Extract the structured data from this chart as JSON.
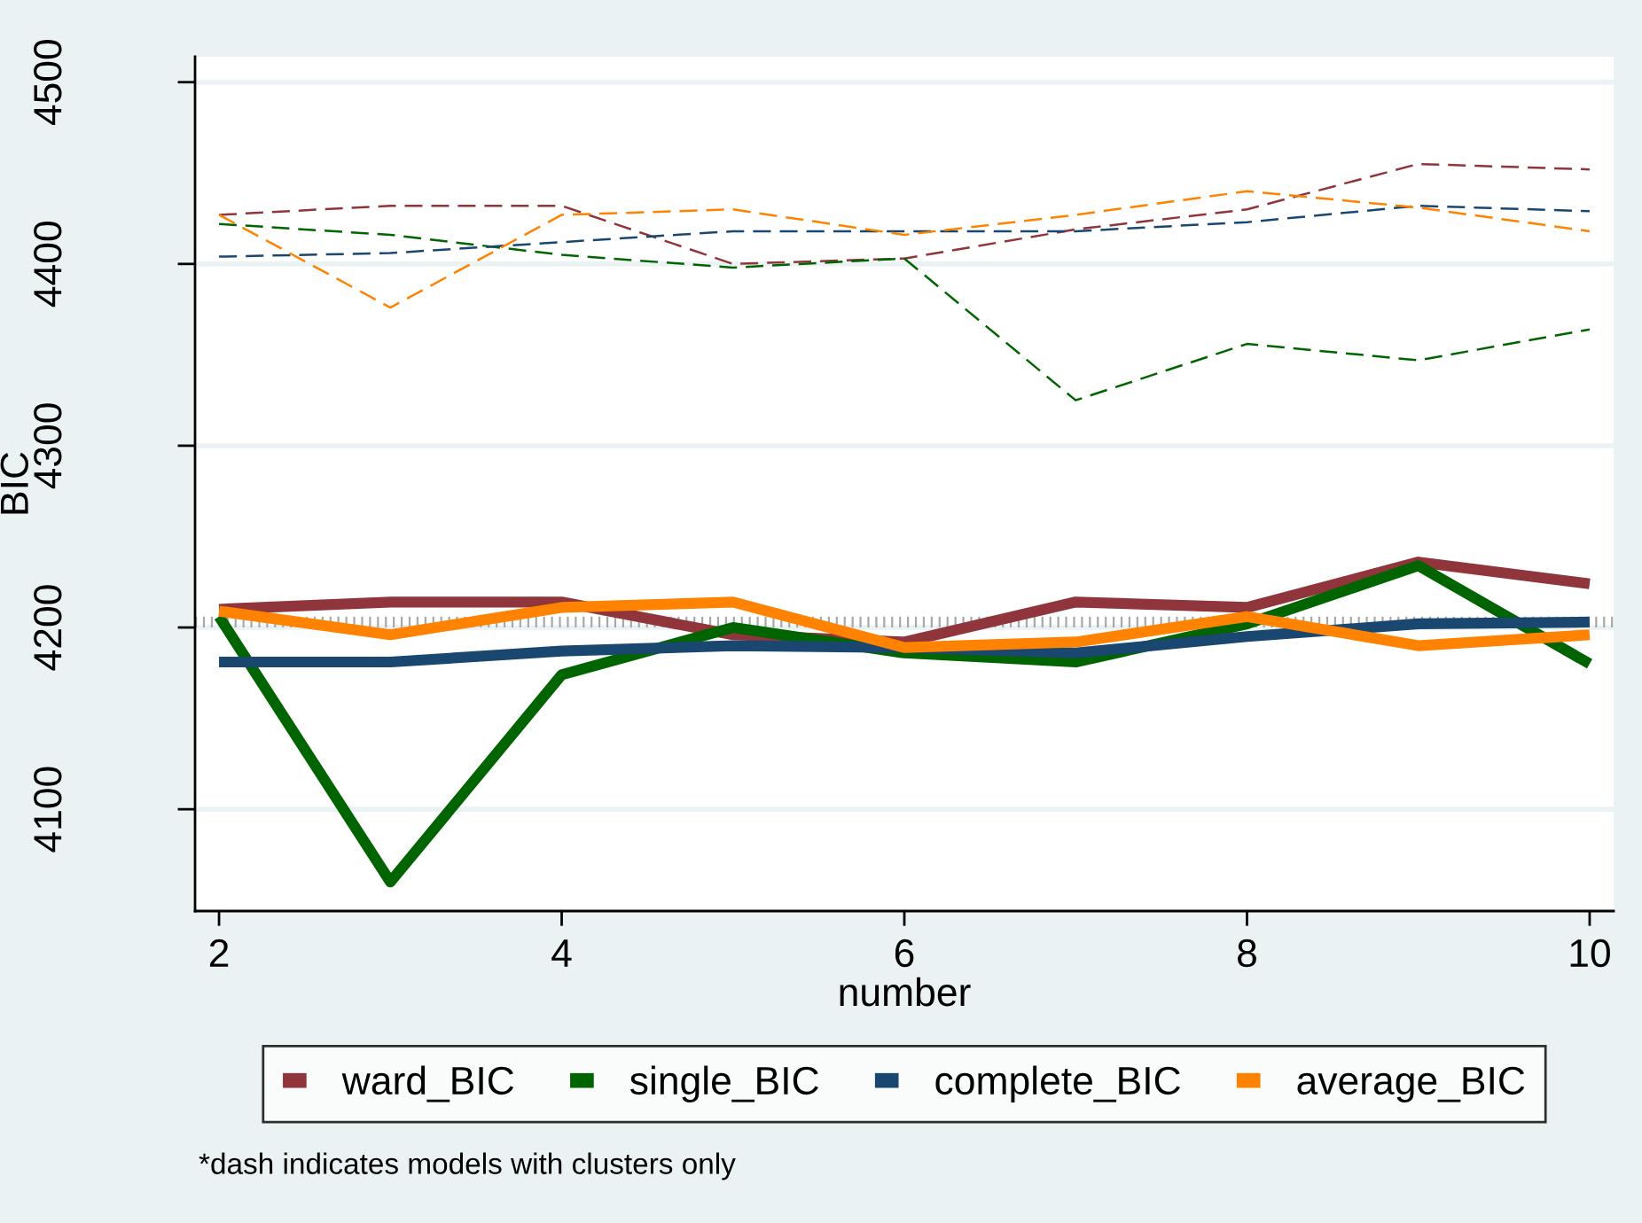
{
  "chart_data": {
    "type": "line",
    "xlabel": "number",
    "ylabel": "BIC",
    "x": [
      2,
      3,
      4,
      5,
      6,
      7,
      8,
      9,
      10
    ],
    "xlim": [
      1.86,
      10.14
    ],
    "ylim": [
      4044,
      4514
    ],
    "xticks": [
      2,
      4,
      6,
      8,
      10
    ],
    "yticks": [
      4100,
      4200,
      4300,
      4400,
      4500
    ],
    "grid": "y",
    "legend": "bottom",
    "ref_lines": [
      {
        "axis": "y",
        "value": 4203,
        "color": "#a8a8a8",
        "line_style": "dotted"
      }
    ],
    "annotations": [
      "*dash indicates models with clusters only"
    ],
    "series": [
      {
        "name": "ward_BIC",
        "color": "#90353b",
        "line_style": "solid",
        "values": [
          4210,
          4214,
          4214,
          4196,
          4192,
          4214,
          4211,
          4236,
          4224
        ]
      },
      {
        "name": "single_BIC",
        "color": "#006400",
        "line_style": "solid",
        "values": [
          4206,
          4060,
          4174,
          4200,
          4186,
          4181,
          4202,
          4234,
          4180
        ]
      },
      {
        "name": "complete_BIC",
        "color": "#1a476f",
        "line_style": "solid",
        "values": [
          4181,
          4181,
          4187,
          4190,
          4189,
          4186,
          4195,
          4202,
          4203
        ]
      },
      {
        "name": "average_BIC",
        "color": "#ff8200",
        "line_style": "solid",
        "values": [
          4209,
          4196,
          4211,
          4214,
          4189,
          4192,
          4206,
          4190,
          4196
        ]
      },
      {
        "color": "#90353b",
        "line_style": "dashed",
        "values": [
          4427,
          4432,
          4432,
          4400,
          4403,
          4419,
          4430,
          4455,
          4452
        ]
      },
      {
        "color": "#006400",
        "line_style": "dashed",
        "values": [
          4422,
          4416,
          4405,
          4398,
          4403,
          4325,
          4356,
          4347,
          4364
        ]
      },
      {
        "color": "#1a476f",
        "line_style": "dashed",
        "values": [
          4404,
          4406,
          4412,
          4418,
          4418,
          4418,
          4423,
          4432,
          4429
        ]
      },
      {
        "color": "#ff8200",
        "line_style": "dashed",
        "values": [
          4427,
          4376,
          4427,
          4430,
          4416,
          4427,
          4440,
          4431,
          4418
        ]
      }
    ]
  }
}
